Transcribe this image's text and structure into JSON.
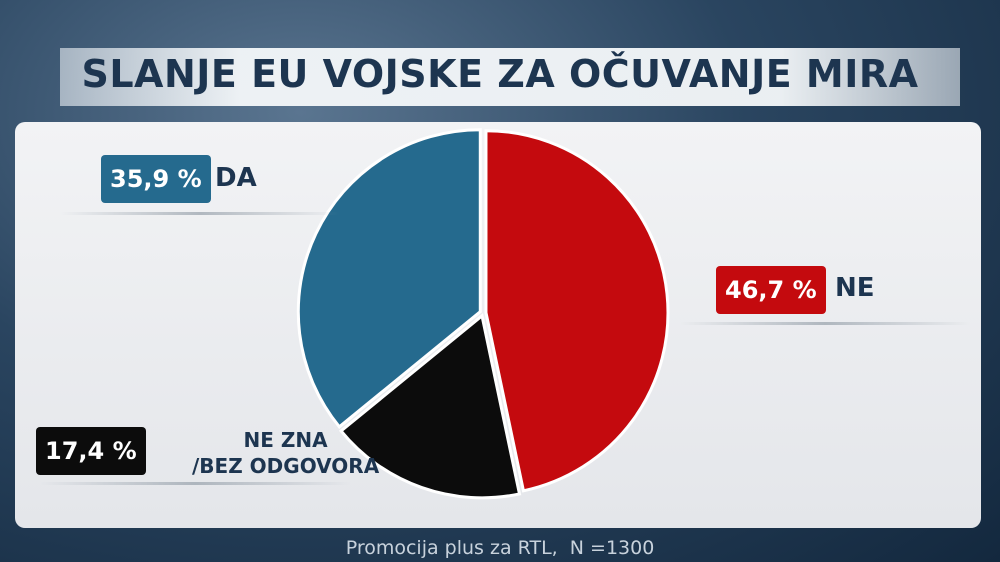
{
  "chart_data": {
    "type": "pie",
    "title": "SLANJE EU VOJSKE ZA OČUVANJE MIRA",
    "categories": [
      "NE",
      "NE ZNA\n/BEZ ODGOVORA",
      "DA"
    ],
    "values": [
      46.7,
      17.4,
      35.9
    ],
    "value_labels": [
      "46,7 %",
      "17,4 %",
      "35,9 %"
    ],
    "colors": [
      "#c40a0e",
      "#0c0c0c",
      "#256a8e"
    ],
    "source": "Promocija plus za RTL,  N =1300"
  }
}
